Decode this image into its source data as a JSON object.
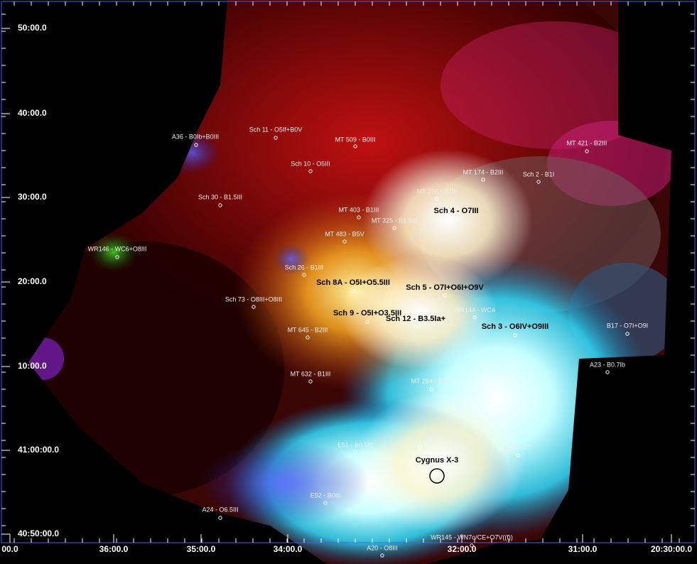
{
  "y_axis": {
    "ticks": [
      "50:00.0",
      "40:00.0",
      "30:00.0",
      "20:00.0",
      "10:00.0",
      "41:00:00.0",
      "40:50:00.0"
    ]
  },
  "x_axis": {
    "ticks": [
      "00.0",
      "36:00.0",
      "35:00.0",
      "34:00.0",
      "32:00.0",
      "31:00.0",
      "20:30:00.0"
    ]
  },
  "sources": [
    {
      "label": "A36 - B0Ib+B0III"
    },
    {
      "label": "Sch 11 - O5If+B0V"
    },
    {
      "label": "MT 509 - B0III"
    },
    {
      "label": "MT 421 - B2III"
    },
    {
      "label": "Sch 10 - O5III"
    },
    {
      "label": "MT 174 - B2III"
    },
    {
      "label": "Sch 2 - B1I"
    },
    {
      "label": "Sch 30 - B1.5III"
    },
    {
      "label": "MT 250 - B2III"
    },
    {
      "label": "Sch 4 - O7III"
    },
    {
      "label": "MT 403 - B1III"
    },
    {
      "label": "MT 325 - B1.5III"
    },
    {
      "label": "MT 483 - B5V"
    },
    {
      "label": "WR146 - WC6+O8III"
    },
    {
      "label": "Sch 26 - B1III"
    },
    {
      "label": "Sch 8A - O5I+O5.5III"
    },
    {
      "label": "Sch 5 - O7I+O6I+O9V"
    },
    {
      "label": "Sch 73 - O8III+O8III"
    },
    {
      "label": "Sch 9 - O5I+O3.5III"
    },
    {
      "label": "Sch 12 - B3.5Ia+"
    },
    {
      "label": "WR144 - WC4"
    },
    {
      "label": "Sch 3 - O6IV+O9III"
    },
    {
      "label": "B17 - O7I+O9I"
    },
    {
      "label": "MT 645 - B2III"
    },
    {
      "label": "A23 - B0.7Ib"
    },
    {
      "label": "MT 632 - B1III"
    },
    {
      "label": "MT 264 - B2III"
    },
    {
      "label": "E51 - B0.5III"
    },
    {
      "label": "E47 - B0Ib"
    },
    {
      "label": "A15 - O7I"
    },
    {
      "label": "E52 - B0Ib"
    },
    {
      "label": "A24 - O6.5III"
    },
    {
      "label": "WR145 - WN7o/CE+O7V((f))"
    },
    {
      "label": "A20 - O8III"
    }
  ],
  "target": {
    "label": "Cygnus X-3"
  }
}
